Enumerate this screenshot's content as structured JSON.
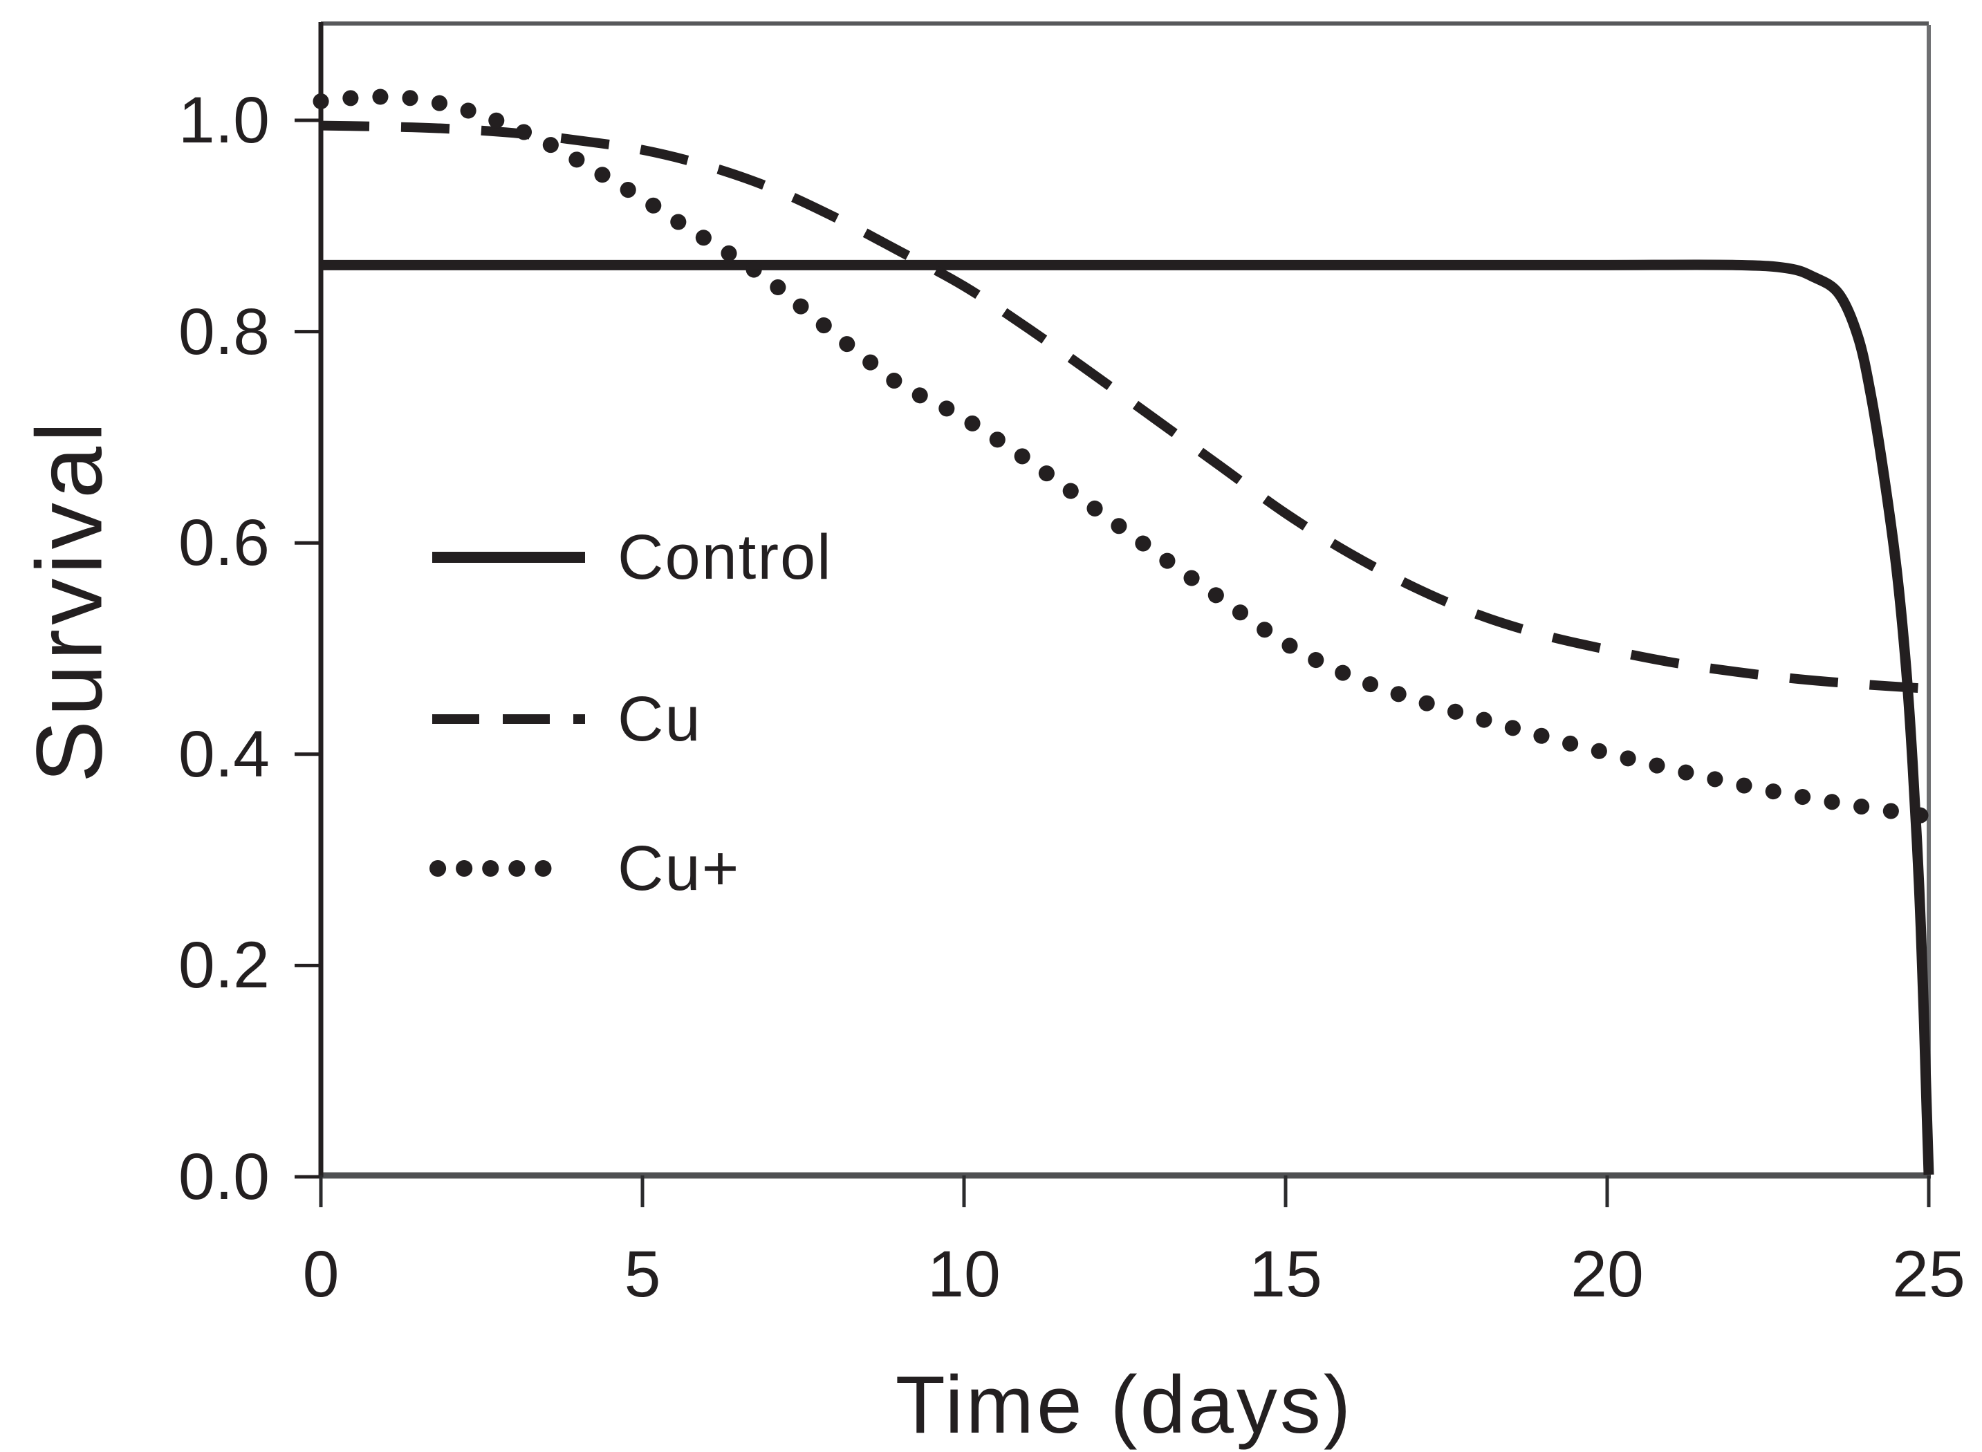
{
  "chart_data": {
    "type": "line",
    "title": "",
    "xlabel": "Time (days)",
    "ylabel": "Survival",
    "xlim": [
      0,
      25
    ],
    "ylim": [
      0.0,
      1.09
    ],
    "grid": false,
    "legend_position": "inside-upper-left",
    "x_ticks": {
      "values": [
        0,
        5,
        10,
        15,
        20,
        25
      ],
      "labels": [
        "0",
        "5",
        "10",
        "15",
        "20",
        "25"
      ]
    },
    "y_ticks": {
      "values": [
        1.0,
        0.8,
        0.6,
        0.4,
        0.2,
        0.0
      ],
      "labels": [
        "1.0",
        "0.8",
        "0.6",
        "0.4",
        "0.2",
        "0.0"
      ]
    },
    "series": [
      {
        "name": "Control",
        "style": "solid",
        "points": [
          [
            0,
            0.863
          ],
          [
            2,
            0.863
          ],
          [
            4,
            0.863
          ],
          [
            6,
            0.863
          ],
          [
            8,
            0.863
          ],
          [
            10,
            0.863
          ],
          [
            12,
            0.863
          ],
          [
            14,
            0.863
          ],
          [
            16,
            0.863
          ],
          [
            18,
            0.863
          ],
          [
            20,
            0.863
          ],
          [
            22,
            0.863
          ],
          [
            22.8,
            0.86
          ],
          [
            23.2,
            0.852
          ],
          [
            23.6,
            0.836
          ],
          [
            23.9,
            0.795
          ],
          [
            24.1,
            0.74
          ],
          [
            24.3,
            0.665
          ],
          [
            24.5,
            0.575
          ],
          [
            24.65,
            0.48
          ],
          [
            24.75,
            0.39
          ],
          [
            24.85,
            0.275
          ],
          [
            24.92,
            0.16
          ],
          [
            24.97,
            0.06
          ],
          [
            25,
            0.002
          ]
        ]
      },
      {
        "name": "Cu",
        "style": "dashed",
        "points": [
          [
            0,
            0.995
          ],
          [
            1,
            0.994
          ],
          [
            2,
            0.992
          ],
          [
            3,
            0.988
          ],
          [
            4,
            0.981
          ],
          [
            5,
            0.972
          ],
          [
            6,
            0.957
          ],
          [
            7,
            0.936
          ],
          [
            8,
            0.908
          ],
          [
            9,
            0.876
          ],
          [
            10,
            0.843
          ],
          [
            11,
            0.803
          ],
          [
            12,
            0.76
          ],
          [
            13,
            0.716
          ],
          [
            14,
            0.672
          ],
          [
            15,
            0.628
          ],
          [
            16,
            0.59
          ],
          [
            17,
            0.558
          ],
          [
            18,
            0.532
          ],
          [
            19,
            0.513
          ],
          [
            20,
            0.499
          ],
          [
            21,
            0.487
          ],
          [
            22,
            0.478
          ],
          [
            23,
            0.471
          ],
          [
            24,
            0.466
          ],
          [
            25,
            0.462
          ]
        ]
      },
      {
        "name": "Cu+",
        "style": "dotted",
        "points": [
          [
            0,
            1.018
          ],
          [
            0.7,
            1.022
          ],
          [
            1.4,
            1.021
          ],
          [
            2,
            1.014
          ],
          [
            2.5,
            1.005
          ],
          [
            3,
            0.993
          ],
          [
            3.5,
            0.979
          ],
          [
            4,
            0.962
          ],
          [
            4.5,
            0.944
          ],
          [
            5,
            0.926
          ],
          [
            5.5,
            0.906
          ],
          [
            6,
            0.887
          ],
          [
            6.5,
            0.868
          ],
          [
            7,
            0.847
          ],
          [
            7.5,
            0.822
          ],
          [
            8,
            0.797
          ],
          [
            8.5,
            0.773
          ],
          [
            9,
            0.75
          ],
          [
            9.5,
            0.734
          ],
          [
            10,
            0.718
          ],
          [
            11,
            0.678
          ],
          [
            12,
            0.634
          ],
          [
            13,
            0.59
          ],
          [
            14,
            0.547
          ],
          [
            15,
            0.505
          ],
          [
            16,
            0.474
          ],
          [
            17,
            0.452
          ],
          [
            18,
            0.434
          ],
          [
            19,
            0.417
          ],
          [
            20,
            0.401
          ],
          [
            21,
            0.386
          ],
          [
            22,
            0.372
          ],
          [
            23,
            0.36
          ],
          [
            24,
            0.35
          ],
          [
            25,
            0.341
          ]
        ]
      }
    ]
  },
  "colors": {
    "ink": "#231f20",
    "frame_gray": "#58595b",
    "bottom_axis_gray": "#4f5052",
    "right_border_gray": "#6e6f71",
    "tick_black": "#2b2b2d",
    "background": "#ffffff"
  }
}
